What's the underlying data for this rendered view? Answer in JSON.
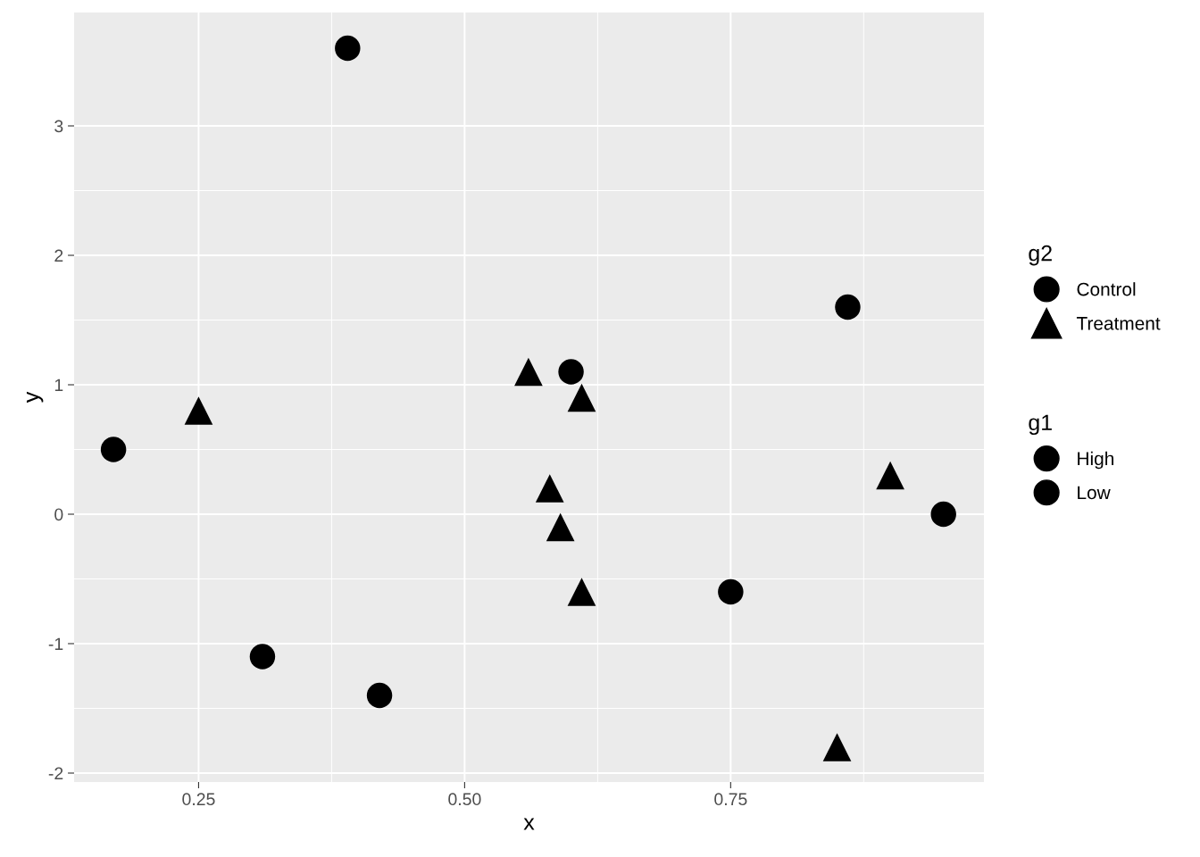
{
  "chart_data": {
    "type": "scatter",
    "xlabel": "x",
    "ylabel": "y",
    "legend_title": "g2",
    "xlim": [
      0.133,
      0.988
    ],
    "ylim": [
      -2.069,
      3.876
    ],
    "xticks": [
      {
        "value": 0.25,
        "label": "0.25"
      },
      {
        "value": 0.5,
        "label": "0.50"
      },
      {
        "value": 0.75,
        "label": "0.75"
      }
    ],
    "yticks": [
      -2,
      -1,
      0,
      1,
      2,
      3
    ],
    "grid": true,
    "legend": "right",
    "series": [
      {
        "name": "Control",
        "color": "#000000",
        "marker": "circle",
        "x": [
          0.17,
          0.39,
          0.31,
          0.42,
          0.6,
          0.86,
          0.75,
          0.95
        ],
        "values": [
          0.5,
          3.6,
          -1.1,
          -1.4,
          1.1,
          1.6,
          -0.6,
          0.0
        ]
      },
      {
        "name": "Treatment",
        "color": "#000000",
        "marker": "triangle",
        "x": [
          0.25,
          0.56,
          0.61,
          0.58,
          0.59,
          0.61,
          0.9,
          0.85
        ],
        "values": [
          0.8,
          1.1,
          0.9,
          0.2,
          -0.1,
          -0.6,
          0.3,
          -1.8
        ]
      }
    ],
    "annotations": [
      "g1",
      "High",
      "Low"
    ]
  }
}
